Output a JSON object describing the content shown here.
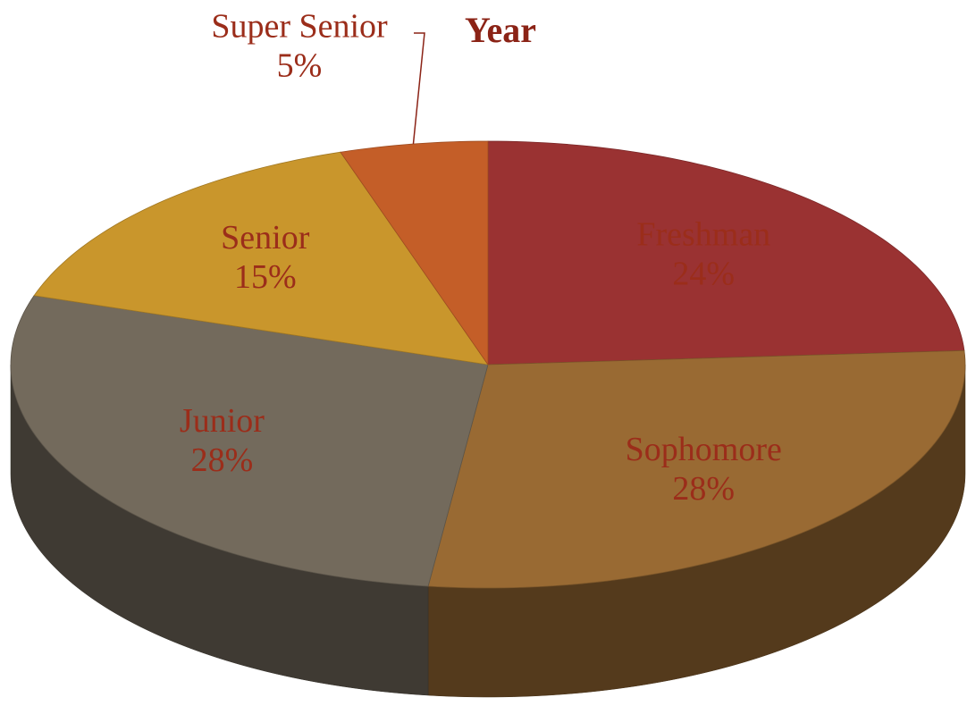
{
  "chart_data": {
    "type": "pie3d",
    "title": "Year",
    "categories": [
      "Freshman",
      "Sophomore",
      "Junior",
      "Senior",
      "Super Senior"
    ],
    "values": [
      24,
      28,
      28,
      15,
      5
    ],
    "value_labels": [
      "24%",
      "28%",
      "28%",
      "15%",
      "5%"
    ],
    "colors": [
      "#9a3232",
      "#996a33",
      "#736a5c",
      "#c9962c",
      "#c45e28"
    ]
  }
}
